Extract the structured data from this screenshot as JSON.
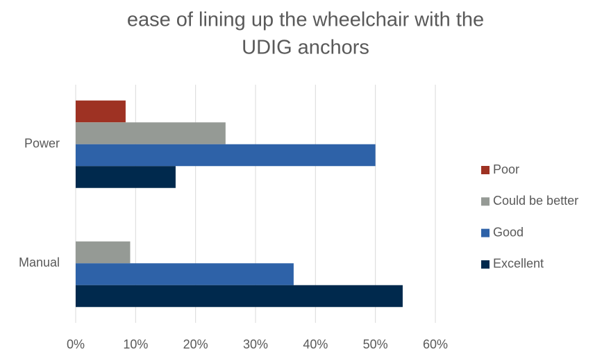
{
  "chart_data": {
    "type": "hbar",
    "title": [
      "ease of lining up the wheelchair with the",
      "UDIG anchors"
    ],
    "categories": [
      "Power",
      "Manual"
    ],
    "series": [
      {
        "name": "Poor",
        "color": "#9e3223",
        "values": [
          8.33,
          0
        ]
      },
      {
        "name": "Could be better",
        "color": "#959a95",
        "values": [
          25,
          9.09
        ]
      },
      {
        "name": "Good",
        "color": "#2e62a8",
        "values": [
          50,
          36.36
        ]
      },
      {
        "name": "Excellent",
        "color": "#00294d",
        "values": [
          16.67,
          54.55
        ]
      }
    ],
    "xlim": [
      0,
      60
    ],
    "xticks": [
      {
        "value": 0,
        "label": "0%"
      },
      {
        "value": 10,
        "label": "10%"
      },
      {
        "value": 20,
        "label": "20%"
      },
      {
        "value": 30,
        "label": "30%"
      },
      {
        "value": 40,
        "label": "40%"
      },
      {
        "value": 50,
        "label": "50%"
      },
      {
        "value": 60,
        "label": "60%"
      }
    ],
    "grid": true,
    "legend": "right"
  }
}
